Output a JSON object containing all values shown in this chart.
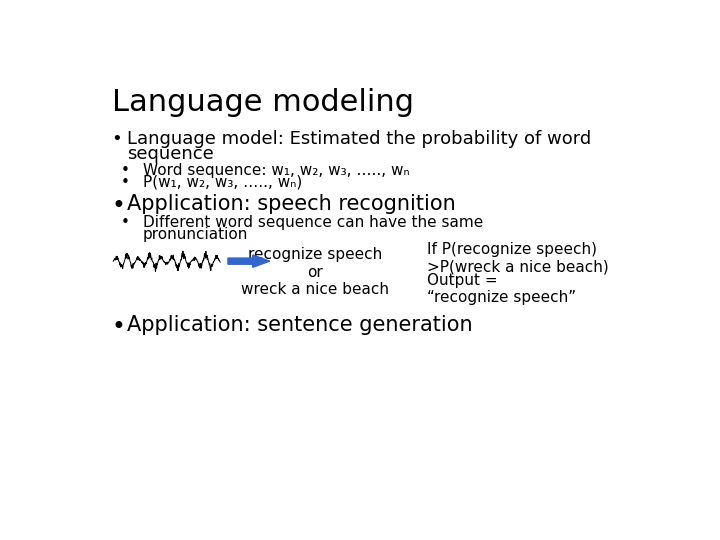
{
  "title": "Language modeling",
  "background_color": "#ffffff",
  "text_color": "#000000",
  "title_fontsize": 22,
  "body_fontsize": 13,
  "sub_fontsize": 11,
  "app_fontsize": 15,
  "arrow_color": "#3366cc",
  "bullet1": "Language model: Estimated the probability of word\nsequence",
  "sub1a": "Word sequence: w₁, w₂, w₃, ….., wₙ",
  "sub1b": "P(w₁, w₂, w₃, ….., wₙ)",
  "bullet2": "Application: speech recognition",
  "sub2a_line1": "Different word sequence can have the same",
  "sub2a_line2": "pronunciation",
  "recognize_text": "recognize speech\nor\nwreck a nice beach",
  "if_text": "If P(recognize speech)\n>P(wreck a nice beach)",
  "output_text": "Output =\n“recognize speech”",
  "bullet3": "Application: sentence generation"
}
